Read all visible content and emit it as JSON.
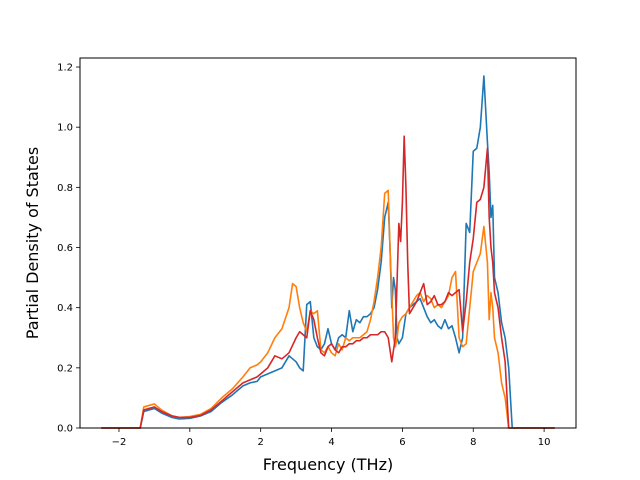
{
  "chart_data": {
    "type": "line",
    "title": "",
    "xlabel": "Frequency (THz)",
    "ylabel": "Partial Density of States",
    "xlim": [
      -3.1,
      10.9
    ],
    "ylim": [
      0.0,
      1.23
    ],
    "xticks": [
      -2,
      0,
      2,
      4,
      6,
      8,
      10
    ],
    "yticks": [
      0.0,
      0.2,
      0.4,
      0.6,
      0.8,
      1.0,
      1.2
    ],
    "xtick_labels": [
      "−2",
      "0",
      "2",
      "4",
      "6",
      "8",
      "10"
    ],
    "ytick_labels": [
      "0.0",
      "0.2",
      "0.4",
      "0.6",
      "0.8",
      "1.0",
      "1.2"
    ],
    "grid": false,
    "series": [
      {
        "color": "#1f77b4",
        "x": [
          -2.5,
          -1.4,
          -1.3,
          -1.0,
          -0.8,
          -0.5,
          -0.3,
          0.0,
          0.3,
          0.6,
          0.9,
          1.2,
          1.5,
          1.7,
          1.9,
          2.0,
          2.2,
          2.4,
          2.6,
          2.8,
          3.0,
          3.1,
          3.2,
          3.3,
          3.4,
          3.5,
          3.6,
          3.7,
          3.8,
          3.9,
          4.0,
          4.1,
          4.2,
          4.3,
          4.4,
          4.5,
          4.6,
          4.7,
          4.8,
          4.9,
          5.0,
          5.1,
          5.2,
          5.3,
          5.4,
          5.5,
          5.6,
          5.65,
          5.7,
          5.75,
          5.8,
          5.85,
          5.9,
          6.0,
          6.1,
          6.2,
          6.3,
          6.4,
          6.5,
          6.6,
          6.7,
          6.8,
          6.9,
          7.0,
          7.1,
          7.2,
          7.3,
          7.4,
          7.5,
          7.6,
          7.7,
          7.8,
          7.9,
          8.0,
          8.1,
          8.2,
          8.3,
          8.4,
          8.45,
          8.5,
          8.55,
          8.6,
          8.7,
          8.75,
          8.8,
          8.9,
          9.0,
          9.1,
          9.2,
          9.3,
          10.3
        ],
        "y": [
          0.0,
          0.0,
          0.055,
          0.065,
          0.05,
          0.035,
          0.03,
          0.032,
          0.04,
          0.055,
          0.085,
          0.11,
          0.14,
          0.15,
          0.155,
          0.17,
          0.18,
          0.19,
          0.2,
          0.24,
          0.22,
          0.2,
          0.19,
          0.41,
          0.42,
          0.3,
          0.27,
          0.26,
          0.28,
          0.33,
          0.28,
          0.26,
          0.3,
          0.31,
          0.3,
          0.39,
          0.32,
          0.36,
          0.35,
          0.37,
          0.37,
          0.38,
          0.4,
          0.46,
          0.55,
          0.7,
          0.75,
          0.6,
          0.4,
          0.5,
          0.46,
          0.3,
          0.28,
          0.3,
          0.38,
          0.4,
          0.41,
          0.42,
          0.43,
          0.4,
          0.37,
          0.35,
          0.36,
          0.34,
          0.33,
          0.36,
          0.33,
          0.34,
          0.3,
          0.25,
          0.3,
          0.68,
          0.65,
          0.92,
          0.93,
          1.0,
          1.17,
          0.95,
          0.85,
          0.7,
          0.74,
          0.5,
          0.45,
          0.4,
          0.35,
          0.3,
          0.2,
          0.0,
          0.0,
          0.0,
          0.0
        ]
      },
      {
        "color": "#ff7f0e",
        "x": [
          -2.5,
          -1.4,
          -1.3,
          -1.0,
          -0.8,
          -0.5,
          -0.3,
          0.0,
          0.3,
          0.6,
          0.9,
          1.2,
          1.5,
          1.7,
          1.9,
          2.0,
          2.2,
          2.4,
          2.6,
          2.8,
          2.9,
          3.0,
          3.1,
          3.2,
          3.3,
          3.4,
          3.5,
          3.6,
          3.7,
          3.8,
          3.9,
          4.0,
          4.1,
          4.2,
          4.3,
          4.4,
          4.5,
          4.6,
          4.7,
          4.8,
          4.9,
          5.0,
          5.1,
          5.2,
          5.3,
          5.4,
          5.5,
          5.6,
          5.65,
          5.7,
          5.75,
          5.8,
          5.85,
          5.9,
          6.0,
          6.1,
          6.2,
          6.3,
          6.4,
          6.5,
          6.6,
          6.7,
          6.8,
          6.9,
          7.0,
          7.1,
          7.2,
          7.3,
          7.4,
          7.5,
          7.6,
          7.7,
          7.8,
          7.9,
          8.0,
          8.1,
          8.2,
          8.3,
          8.4,
          8.45,
          8.5,
          8.55,
          8.6,
          8.7,
          8.75,
          8.8,
          8.9,
          9.0,
          9.1,
          9.2,
          9.3,
          10.3
        ],
        "y": [
          0.0,
          0.0,
          0.07,
          0.08,
          0.06,
          0.04,
          0.035,
          0.038,
          0.045,
          0.065,
          0.1,
          0.13,
          0.17,
          0.2,
          0.21,
          0.22,
          0.25,
          0.3,
          0.33,
          0.4,
          0.48,
          0.47,
          0.4,
          0.35,
          0.32,
          0.39,
          0.38,
          0.39,
          0.26,
          0.25,
          0.27,
          0.25,
          0.24,
          0.28,
          0.26,
          0.3,
          0.29,
          0.3,
          0.3,
          0.3,
          0.31,
          0.32,
          0.36,
          0.42,
          0.5,
          0.6,
          0.78,
          0.79,
          0.6,
          0.45,
          0.3,
          0.27,
          0.3,
          0.35,
          0.37,
          0.38,
          0.4,
          0.42,
          0.44,
          0.45,
          0.42,
          0.44,
          0.43,
          0.4,
          0.41,
          0.4,
          0.42,
          0.44,
          0.5,
          0.52,
          0.3,
          0.27,
          0.28,
          0.4,
          0.52,
          0.55,
          0.58,
          0.67,
          0.55,
          0.36,
          0.45,
          0.4,
          0.3,
          0.25,
          0.2,
          0.15,
          0.1,
          0.0,
          0.0,
          0.0,
          0.0,
          0.0
        ]
      },
      {
        "color": "#d62728",
        "x": [
          -2.5,
          -1.4,
          -1.3,
          -1.0,
          -0.8,
          -0.5,
          -0.3,
          0.0,
          0.3,
          0.6,
          0.9,
          1.2,
          1.5,
          1.7,
          1.9,
          2.0,
          2.2,
          2.4,
          2.6,
          2.8,
          3.0,
          3.1,
          3.2,
          3.3,
          3.4,
          3.5,
          3.6,
          3.7,
          3.8,
          3.9,
          4.0,
          4.1,
          4.2,
          4.3,
          4.4,
          4.5,
          4.6,
          4.7,
          4.8,
          4.9,
          5.0,
          5.1,
          5.2,
          5.3,
          5.4,
          5.5,
          5.6,
          5.7,
          5.8,
          5.9,
          5.95,
          6.0,
          6.05,
          6.1,
          6.15,
          6.2,
          6.3,
          6.4,
          6.5,
          6.6,
          6.7,
          6.8,
          6.9,
          7.0,
          7.1,
          7.2,
          7.3,
          7.4,
          7.5,
          7.6,
          7.7,
          7.8,
          7.9,
          8.0,
          8.1,
          8.2,
          8.3,
          8.4,
          8.45,
          8.5,
          8.55,
          8.6,
          8.7,
          8.75,
          8.8,
          8.9,
          9.0,
          9.1,
          9.2,
          9.3,
          10.3
        ],
        "y": [
          0.0,
          0.0,
          0.06,
          0.07,
          0.055,
          0.04,
          0.035,
          0.035,
          0.042,
          0.06,
          0.09,
          0.12,
          0.15,
          0.16,
          0.17,
          0.18,
          0.2,
          0.24,
          0.23,
          0.25,
          0.3,
          0.32,
          0.31,
          0.3,
          0.39,
          0.36,
          0.3,
          0.25,
          0.24,
          0.27,
          0.28,
          0.26,
          0.25,
          0.27,
          0.27,
          0.28,
          0.28,
          0.29,
          0.29,
          0.3,
          0.3,
          0.31,
          0.31,
          0.31,
          0.32,
          0.32,
          0.3,
          0.22,
          0.3,
          0.68,
          0.62,
          0.75,
          0.97,
          0.8,
          0.55,
          0.38,
          0.4,
          0.42,
          0.45,
          0.48,
          0.41,
          0.42,
          0.44,
          0.41,
          0.41,
          0.42,
          0.45,
          0.44,
          0.45,
          0.46,
          0.32,
          0.42,
          0.55,
          0.63,
          0.75,
          0.76,
          0.8,
          0.93,
          0.7,
          0.6,
          0.55,
          0.45,
          0.4,
          0.35,
          0.3,
          0.22,
          0.0,
          0.0,
          0.0,
          0.0,
          0.0
        ]
      }
    ]
  }
}
